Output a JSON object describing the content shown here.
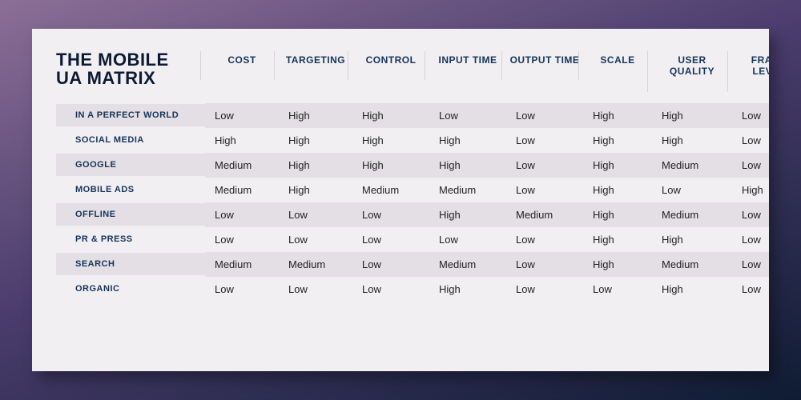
{
  "background": {
    "gradient_from": "#8b6f96",
    "gradient_mid": "#4b3d6e",
    "gradient_to": "#0f1c33"
  },
  "card": {
    "background_color": "#f1eff2",
    "shadow_color": "#2a2240"
  },
  "title": {
    "line1": "THE MOBILE",
    "line2": "UA MATRIX",
    "color": "#0e1a33",
    "fontsize": 22
  },
  "table": {
    "header_color": "#16345a",
    "header_fontsize": 12,
    "rowlabel_color": "#16345a",
    "rowlabel_fontsize": 11,
    "cell_color": "#222222",
    "cell_fontsize": 13,
    "band_color": "#e3dfe4",
    "columns": [
      "COST",
      "TARGETING",
      "CONTROL",
      "INPUT TIME",
      "OUTPUT TIME",
      "SCALE",
      "USER QUALITY",
      "FRAUD LEVEL"
    ],
    "column_widths": [
      "186px",
      "92px",
      "92px",
      "96px",
      "96px",
      "96px",
      "86px",
      "100px",
      "92px"
    ],
    "rows": [
      {
        "label": "IN A PERFECT WORLD",
        "banded": true,
        "values": [
          "Low",
          "High",
          "High",
          "Low",
          "Low",
          "High",
          "High",
          "Low"
        ]
      },
      {
        "label": "SOCIAL MEDIA",
        "banded": false,
        "values": [
          "High",
          "High",
          "High",
          "High",
          "Low",
          "High",
          "High",
          "Low"
        ]
      },
      {
        "label": "GOOGLE",
        "banded": true,
        "values": [
          "Medium",
          "High",
          "High",
          "High",
          "Low",
          "High",
          "Medium",
          "Low"
        ]
      },
      {
        "label": "MOBILE ADS",
        "banded": false,
        "values": [
          "Medium",
          "High",
          "Medium",
          "Medium",
          "Low",
          "High",
          "Low",
          "High"
        ]
      },
      {
        "label": "OFFLINE",
        "banded": true,
        "values": [
          "Low",
          "Low",
          "Low",
          "High",
          "Medium",
          "High",
          "Medium",
          "Low"
        ]
      },
      {
        "label": "PR & PRESS",
        "banded": false,
        "values": [
          "Low",
          "Low",
          "Low",
          "Low",
          "Low",
          "High",
          "High",
          "Low"
        ]
      },
      {
        "label": "SEARCH",
        "banded": true,
        "values": [
          "Medium",
          "Medium",
          "Low",
          "Medium",
          "Low",
          "High",
          "Medium",
          "Low"
        ]
      },
      {
        "label": "ORGANIC",
        "banded": false,
        "values": [
          "Low",
          "Low",
          "Low",
          "High",
          "Low",
          "Low",
          "High",
          "Low"
        ]
      }
    ]
  }
}
